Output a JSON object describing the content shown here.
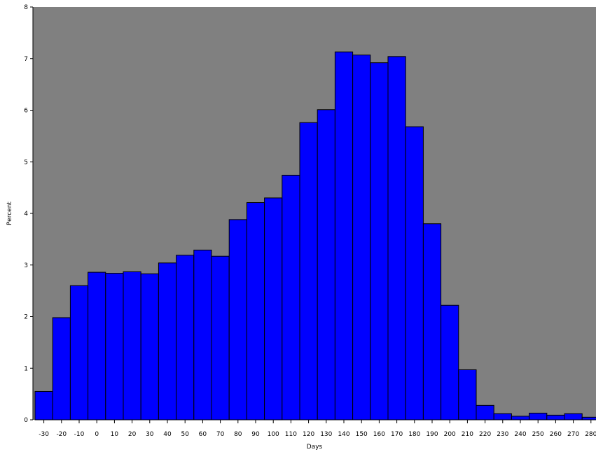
{
  "chart_data": {
    "type": "bar",
    "title": "",
    "xlabel": "Days",
    "ylabel": "Percent",
    "categories": [
      "-30",
      "-20",
      "-10",
      "0",
      "10",
      "20",
      "30",
      "40",
      "50",
      "60",
      "70",
      "80",
      "90",
      "100",
      "110",
      "120",
      "130",
      "140",
      "150",
      "160",
      "170",
      "180",
      "190",
      "200",
      "210",
      "220",
      "230",
      "240",
      "250",
      "260",
      "270",
      "280"
    ],
    "values": [
      0.55,
      1.98,
      2.6,
      2.86,
      2.84,
      2.87,
      2.83,
      3.04,
      3.19,
      3.29,
      3.17,
      3.88,
      4.21,
      4.3,
      4.74,
      5.76,
      6.01,
      7.13,
      7.07,
      6.92,
      7.04,
      5.68,
      3.8,
      2.22,
      0.97,
      0.28,
      0.12,
      0.07,
      0.13,
      0.09,
      0.12,
      0.05
    ],
    "ylim": [
      0,
      8
    ],
    "yticks": [
      "0",
      "1",
      "2",
      "3",
      "4",
      "5",
      "6",
      "7",
      "8"
    ],
    "grid": false,
    "colors": {
      "plot_background": "#808080",
      "bar_fill": "#0000ff",
      "bar_edge": "#000000",
      "axis": "#000000"
    }
  }
}
